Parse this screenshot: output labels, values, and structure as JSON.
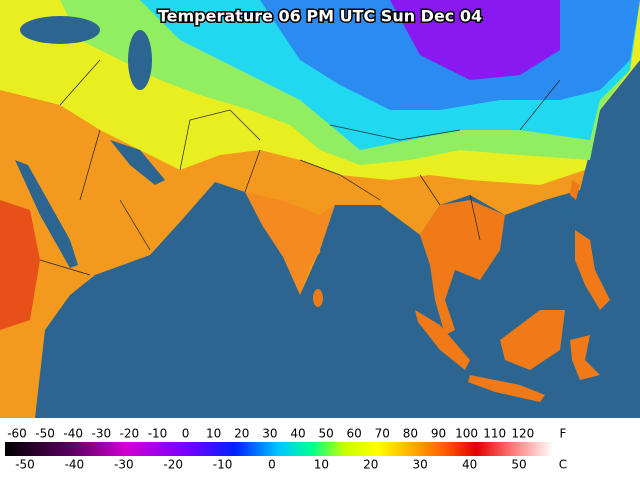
{
  "title": "Temperature 06 PM UTC Sun Dec 04",
  "legend": {
    "fahrenheit": {
      "unit": "F",
      "ticks": [
        -60,
        -50,
        -40,
        -30,
        -20,
        -10,
        0,
        10,
        20,
        30,
        40,
        50,
        60,
        70,
        80,
        90,
        100,
        110,
        120
      ]
    },
    "celsius": {
      "unit": "C",
      "ticks": [
        -50,
        -40,
        -30,
        -20,
        -10,
        0,
        10,
        20,
        30,
        40,
        50
      ]
    }
  }
}
